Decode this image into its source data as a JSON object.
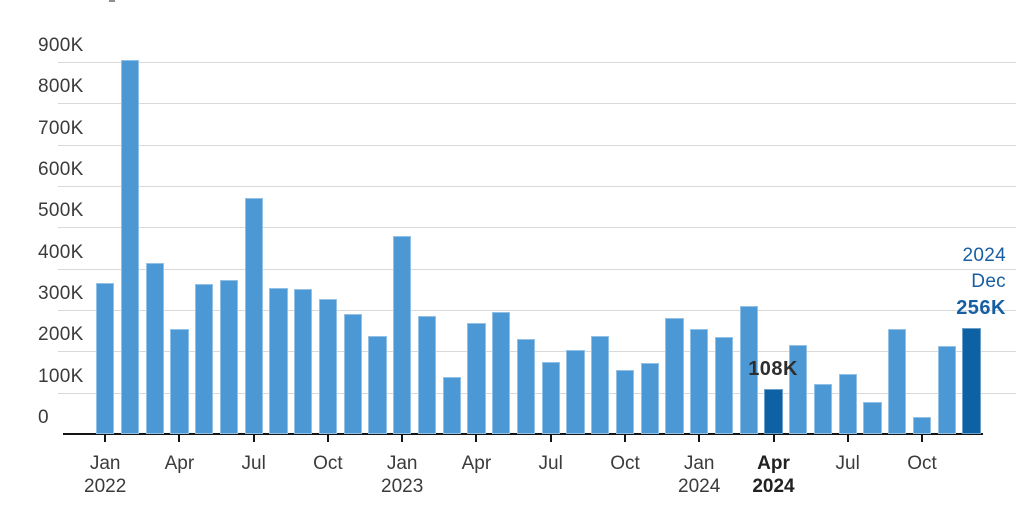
{
  "chart_data": {
    "type": "bar",
    "title": "",
    "value_suffix": "K",
    "categories": [
      "Jan 2022",
      "Feb 2022",
      "Mar 2022",
      "Apr 2022",
      "May 2022",
      "Jun 2022",
      "Jul 2022",
      "Aug 2022",
      "Sep 2022",
      "Oct 2022",
      "Nov 2022",
      "Dec 2022",
      "Jan 2023",
      "Feb 2023",
      "Mar 2023",
      "Apr 2023",
      "May 2023",
      "Jun 2023",
      "Jul 2023",
      "Aug 2023",
      "Sep 2023",
      "Oct 2023",
      "Nov 2023",
      "Dec 2023",
      "Jan 2024",
      "Feb 2024",
      "Mar 2024",
      "Apr 2024",
      "May 2024",
      "Jun 2024",
      "Jul 2024",
      "Aug 2024",
      "Sep 2024",
      "Oct 2024",
      "Nov 2024",
      "Dec 2024"
    ],
    "values_thousands": [
      365,
      905,
      415,
      253,
      364,
      373,
      570,
      354,
      352,
      326,
      290,
      238,
      480,
      285,
      139,
      269,
      296,
      231,
      175,
      203,
      237,
      156,
      173,
      281,
      253,
      235,
      310,
      108,
      215,
      120,
      145,
      78,
      254,
      42,
      212,
      256
    ],
    "ylim_thousands": [
      0,
      900
    ],
    "grid": true,
    "y_tick_labels": [
      "0",
      "100K",
      "200K",
      "300K",
      "400K",
      "500K",
      "600K",
      "700K",
      "800K",
      "900K"
    ],
    "x_tick_labels": [
      {
        "index": 0,
        "line1": "Jan",
        "line2": "2022",
        "bold": false
      },
      {
        "index": 3,
        "line1": "Apr",
        "line2": "",
        "bold": false
      },
      {
        "index": 6,
        "line1": "Jul",
        "line2": "",
        "bold": false
      },
      {
        "index": 9,
        "line1": "Oct",
        "line2": "",
        "bold": false
      },
      {
        "index": 12,
        "line1": "Jan",
        "line2": "2023",
        "bold": false
      },
      {
        "index": 15,
        "line1": "Apr",
        "line2": "",
        "bold": false
      },
      {
        "index": 18,
        "line1": "Jul",
        "line2": "",
        "bold": false
      },
      {
        "index": 21,
        "line1": "Oct",
        "line2": "",
        "bold": false
      },
      {
        "index": 24,
        "line1": "Jan",
        "line2": "2024",
        "bold": false
      },
      {
        "index": 27,
        "line1": "Apr",
        "line2": "2024",
        "bold": true
      },
      {
        "index": 30,
        "line1": "Jul",
        "line2": "",
        "bold": false
      },
      {
        "index": 33,
        "line1": "Oct",
        "line2": "",
        "bold": false
      }
    ],
    "highlighted_indices": [
      27,
      35
    ],
    "annotations": {
      "apr_2024": {
        "text": "108K",
        "bold": true
      },
      "dec_2024": {
        "lines": [
          "2024",
          "Dec",
          "256K"
        ],
        "bold_line": "256K"
      }
    },
    "colors": {
      "bar": "#4b98d5",
      "bar_highlight": "#0d62a5",
      "grid": "#d9d9d9",
      "axis": "#141414",
      "label": "#3b3b3b",
      "annotation_dark": "#2e2e2e",
      "annotation_blue": "#175fa3"
    },
    "legend": null
  }
}
